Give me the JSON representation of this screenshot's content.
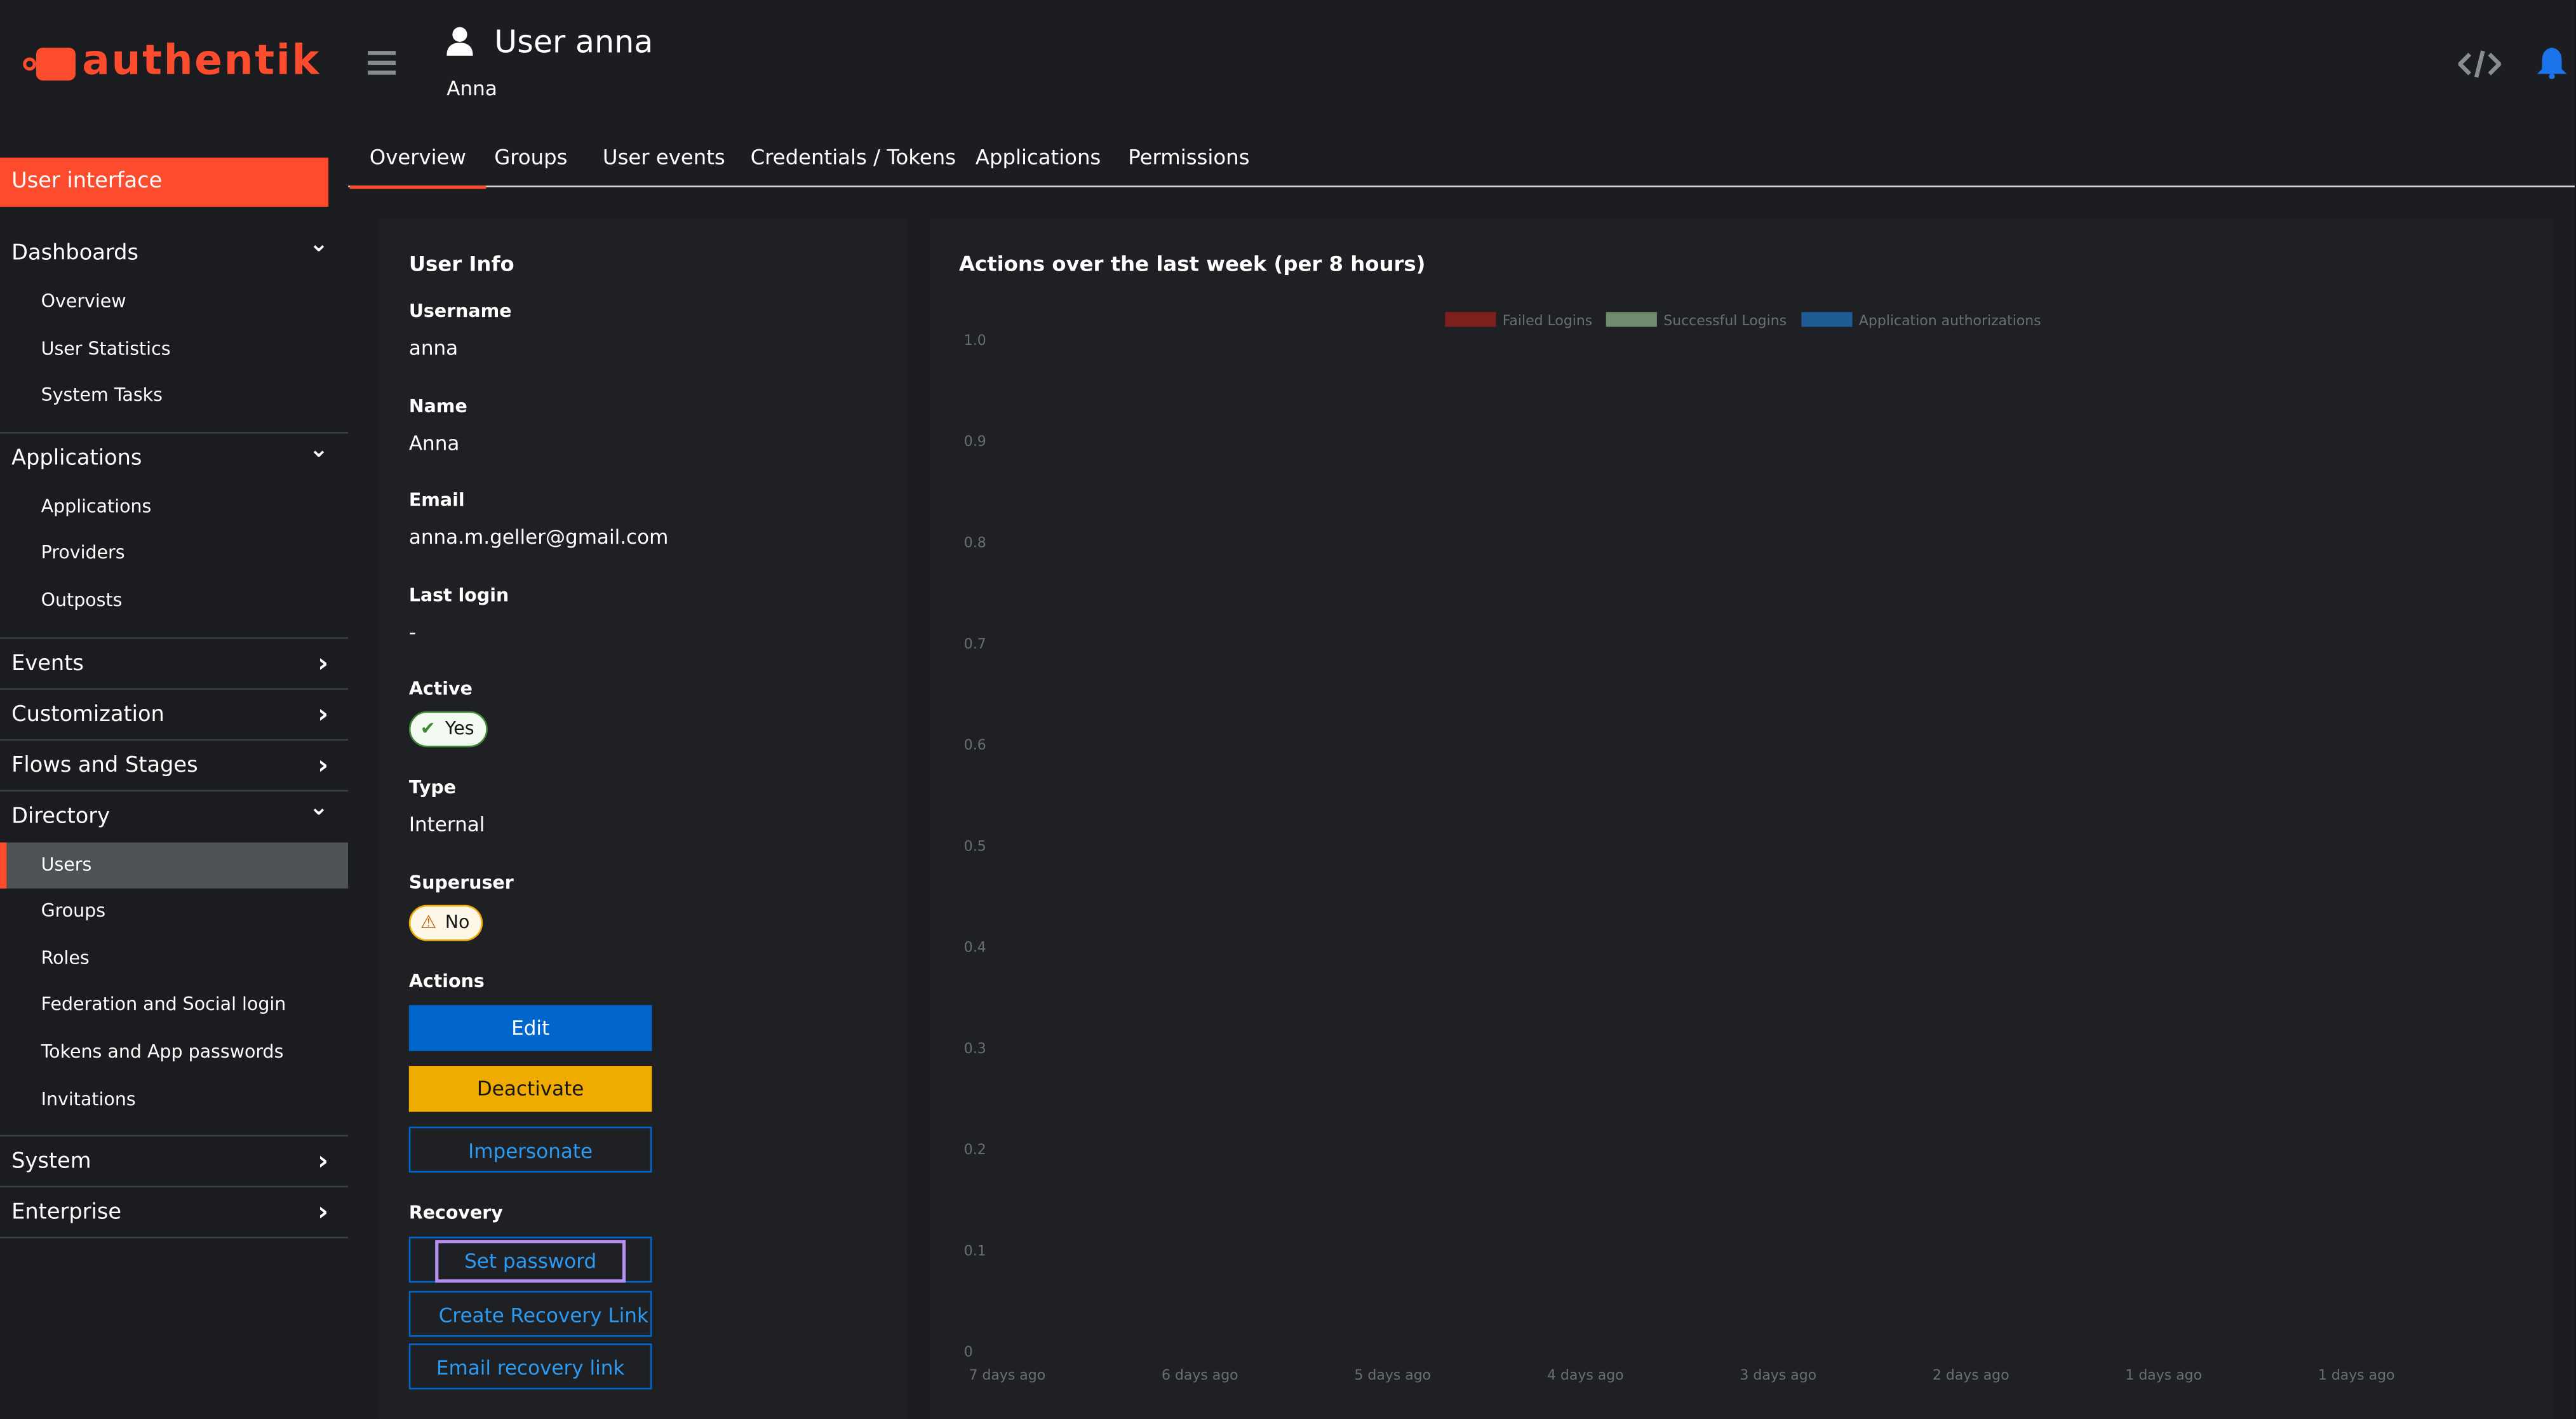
{
  "brand": "authentik",
  "sidebar": {
    "active_item": "User interface",
    "current_item": "Users",
    "sections": [
      {
        "label": "Dashboards",
        "open": true,
        "items": [
          "Overview",
          "User Statistics",
          "System Tasks"
        ]
      },
      {
        "label": "Applications",
        "open": true,
        "items": [
          "Applications",
          "Providers",
          "Outposts"
        ]
      },
      {
        "label": "Events",
        "open": false
      },
      {
        "label": "Customization",
        "open": false
      },
      {
        "label": "Flows and Stages",
        "open": false
      },
      {
        "label": "Directory",
        "open": true,
        "items": [
          "Users",
          "Groups",
          "Roles",
          "Federation and Social login",
          "Tokens and App passwords",
          "Invitations"
        ]
      },
      {
        "label": "System",
        "open": false
      },
      {
        "label": "Enterprise",
        "open": false
      }
    ]
  },
  "header": {
    "title": "User anna",
    "subtitle": "Anna"
  },
  "tabs": {
    "active": 0,
    "items": [
      "Overview",
      "Groups",
      "User events",
      "Credentials / Tokens",
      "Applications",
      "Permissions"
    ]
  },
  "user_info": {
    "title": "User Info",
    "fields": [
      {
        "label": "Username",
        "value": "anna"
      },
      {
        "label": "Name",
        "value": "Anna"
      },
      {
        "label": "Email",
        "value": "anna.m.geller@gmail.com"
      },
      {
        "label": "Last login",
        "value": "-"
      },
      {
        "label": "Active",
        "value": "Yes",
        "badge": "ok"
      },
      {
        "label": "Type",
        "value": "Internal"
      },
      {
        "label": "Superuser",
        "value": "No",
        "badge": "warn"
      }
    ],
    "actions_label": "Actions",
    "actions": [
      "Edit",
      "Deactivate",
      "Impersonate"
    ],
    "recovery_label": "Recovery",
    "recovery": [
      "Set password",
      "Create Recovery Link",
      "Email recovery link"
    ]
  },
  "chart_data": {
    "type": "bar",
    "title": "Actions over the last week (per 8 hours)",
    "categories": [
      "7 days ago",
      "6 days ago",
      "5 days ago",
      "4 days ago",
      "3 days ago",
      "2 days ago",
      "1 days ago",
      "1 days ago"
    ],
    "series": [
      {
        "name": "Failed Logins",
        "color": "#7d1f1c"
      },
      {
        "name": "Successful Logins",
        "color": "#6f8a6c"
      },
      {
        "name": "Application authorizations",
        "color": "#1f5b94"
      }
    ],
    "ylim": [
      0,
      1
    ],
    "yticks": [
      0,
      0.1,
      0.2,
      0.3,
      0.4,
      0.5,
      0.6,
      0.7,
      0.8,
      0.9,
      {
        "value": 1,
        "label": "1.0"
      }
    ]
  }
}
